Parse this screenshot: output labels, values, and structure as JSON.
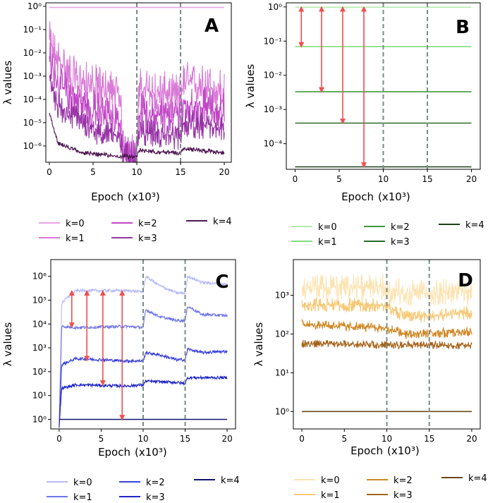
{
  "colors": {
    "A": [
      "#e8a3e4",
      "#d97ad6",
      "#c147c6",
      "#9733a6",
      "#4e1750"
    ],
    "B": [
      "#b4ecb0",
      "#7edd7a",
      "#3f9a3c",
      "#2b6a2a",
      "#1b3f1a"
    ],
    "C": [
      "#b7b9f6",
      "#7076ea",
      "#3a40dc",
      "#1f26c6",
      "#11146e"
    ],
    "D": [
      "#fde3b2",
      "#f7c874",
      "#cf8724",
      "#a5641c",
      "#6e4716"
    ],
    "arrow": "#f04e4e",
    "dashed": "#7a8b8b"
  },
  "chart_data": [
    {
      "panel": "A",
      "type": "line",
      "xlabel": "Epoch",
      "xunit": "(x10³)",
      "ylabel": "λ values",
      "xlim": [
        -0.4,
        20.8
      ],
      "ylim_log10": [
        -6.7,
        0.15
      ],
      "xticks": [
        "0",
        "5",
        "10",
        "15",
        "20"
      ],
      "yticks": [
        "10⁰",
        "10⁻¹",
        "10⁻²",
        "10⁻³",
        "10⁻⁴",
        "10⁻⁵",
        "10⁻⁶"
      ],
      "vlines": [
        10,
        15
      ],
      "series": [
        {
          "name": "k=0",
          "log10_trend": [
            [
              0,
              -0.05
            ],
            [
              20,
              -0.05
            ]
          ],
          "noise": 0
        },
        {
          "name": "k=1",
          "log10_trend": [
            [
              0,
              -1.6
            ],
            [
              1,
              -2.3
            ],
            [
              3,
              -3.2
            ],
            [
              8,
              -3.8
            ],
            [
              8.5,
              -6.4
            ],
            [
              10,
              -6.4
            ],
            [
              10.2,
              -3.6
            ],
            [
              15,
              -3.9
            ],
            [
              15.2,
              -3.3
            ],
            [
              20,
              -3.6
            ]
          ],
          "noise": 1.0
        },
        {
          "name": "k=2",
          "log10_trend": [
            [
              0,
              -2.3
            ],
            [
              1,
              -3.4
            ],
            [
              4,
              -4.3
            ],
            [
              8,
              -4.9
            ],
            [
              8.5,
              -6.4
            ],
            [
              10,
              -6.4
            ],
            [
              10.2,
              -4.6
            ],
            [
              15,
              -4.8
            ],
            [
              15.2,
              -4.2
            ],
            [
              20,
              -4.5
            ]
          ],
          "noise": 0.9
        },
        {
          "name": "k=3",
          "log10_trend": [
            [
              0,
              -3.2
            ],
            [
              1,
              -4.3
            ],
            [
              5,
              -5.3
            ],
            [
              8,
              -5.6
            ],
            [
              8.5,
              -6.4
            ],
            [
              10,
              -6.4
            ],
            [
              10.2,
              -5.4
            ],
            [
              15,
              -5.6
            ],
            [
              15.2,
              -5.0
            ],
            [
              20,
              -5.3
            ]
          ],
          "noise": 0.6
        },
        {
          "name": "k=4",
          "log10_trend": [
            [
              0,
              -4.6
            ],
            [
              1,
              -5.9
            ],
            [
              4,
              -6.3
            ],
            [
              8,
              -6.45
            ],
            [
              10,
              -6.45
            ],
            [
              10.2,
              -6.2
            ],
            [
              15,
              -6.3
            ],
            [
              15.2,
              -6.1
            ],
            [
              20,
              -6.3
            ]
          ],
          "noise": 0.1
        }
      ],
      "legend": [
        "k=0",
        "k=1",
        "k=2",
        "k=3",
        "k=4"
      ]
    },
    {
      "panel": "B",
      "type": "line",
      "xlabel": "Epoch",
      "xunit": "(x10³)",
      "ylabel": "λ values",
      "xlim": [
        -1,
        21
      ],
      "ylim_log10": [
        -4.75,
        0.12
      ],
      "xticks": [
        "0",
        "5",
        "10",
        "15",
        "20"
      ],
      "yticks": [
        "10⁰",
        "10⁻¹",
        "10⁻²",
        "10⁻³",
        "10⁻⁴"
      ],
      "vlines": [
        10,
        15
      ],
      "series": [
        {
          "name": "k=0",
          "values": 0.98
        },
        {
          "name": "k=1",
          "values": 0.069
        },
        {
          "name": "k=2",
          "values": 0.0033
        },
        {
          "name": "k=3",
          "values": 0.0004
        },
        {
          "name": "k=4",
          "values": 2.1e-05
        }
      ],
      "arrows": [
        {
          "x": 0.7,
          "from": 0.98,
          "to": 0.069
        },
        {
          "x": 3.0,
          "from": 0.98,
          "to": 0.0033
        },
        {
          "x": 5.4,
          "from": 0.98,
          "to": 0.0004
        },
        {
          "x": 7.8,
          "from": 0.98,
          "to": 2.1e-05
        }
      ],
      "legend": [
        "k=0",
        "k=1",
        "k=2",
        "k=3",
        "k=4"
      ]
    },
    {
      "panel": "C",
      "type": "line",
      "xlabel": "Epoch",
      "xunit": "(x10³)",
      "ylabel": "λ values",
      "xlim": [
        -1,
        21
      ],
      "ylim_log10": [
        -0.4,
        6.7
      ],
      "xticks": [
        "0",
        "5",
        "10",
        "15",
        "20"
      ],
      "yticks": [
        "10⁶",
        "10⁵",
        "10⁴",
        "10³",
        "10²",
        "10¹",
        "10⁰"
      ],
      "vlines": [
        10,
        15
      ],
      "series": [
        {
          "name": "k=0",
          "log10_trend": [
            [
              0,
              -0.3
            ],
            [
              0.3,
              4.9
            ],
            [
              2,
              5.4
            ],
            [
              8,
              5.4
            ],
            [
              10,
              5.35
            ],
            [
              10.3,
              6.0
            ],
            [
              12,
              5.6
            ],
            [
              14,
              5.3
            ],
            [
              15,
              5.3
            ],
            [
              15.3,
              6.0
            ],
            [
              17,
              5.75
            ],
            [
              20,
              5.65
            ]
          ],
          "noise": 0.12
        },
        {
          "name": "k=1",
          "log10_trend": [
            [
              0,
              -0.3
            ],
            [
              0.3,
              3.9
            ],
            [
              2,
              3.85
            ],
            [
              8,
              3.9
            ],
            [
              10,
              3.85
            ],
            [
              10.3,
              4.6
            ],
            [
              12,
              4.3
            ],
            [
              14,
              4.15
            ],
            [
              15,
              4.15
            ],
            [
              15.3,
              4.75
            ],
            [
              17,
              4.4
            ],
            [
              20,
              4.35
            ]
          ],
          "noise": 0.12
        },
        {
          "name": "k=2",
          "log10_trend": [
            [
              0,
              -0.3
            ],
            [
              0.3,
              2.3
            ],
            [
              2,
              2.55
            ],
            [
              8,
              2.45
            ],
            [
              10,
              2.45
            ],
            [
              10.3,
              2.8
            ],
            [
              12,
              2.7
            ],
            [
              14,
              2.5
            ],
            [
              15,
              2.5
            ],
            [
              15.3,
              2.95
            ],
            [
              17,
              2.8
            ],
            [
              20,
              2.85
            ]
          ],
          "noise": 0.12
        },
        {
          "name": "k=3",
          "log10_trend": [
            [
              0,
              -0.3
            ],
            [
              0.3,
              1.3
            ],
            [
              2,
              1.45
            ],
            [
              8,
              1.4
            ],
            [
              10,
              1.45
            ],
            [
              10.3,
              1.6
            ],
            [
              14,
              1.55
            ],
            [
              15,
              1.5
            ],
            [
              15.3,
              1.75
            ],
            [
              20,
              1.75
            ]
          ],
          "noise": 0.12
        },
        {
          "name": "k=4",
          "log10_trend": [
            [
              0,
              0
            ],
            [
              20,
              0
            ]
          ],
          "noise": 0
        }
      ],
      "arrows": [
        {
          "x": 1.5,
          "from": 240000,
          "to": 7500
        },
        {
          "x": 3.3,
          "from": 240000,
          "to": 300
        },
        {
          "x": 5.2,
          "from": 240000,
          "to": 28
        },
        {
          "x": 7.5,
          "from": 240000,
          "to": 1
        }
      ],
      "legend": [
        "k=0",
        "k=1",
        "k=2",
        "k=3",
        "k=4"
      ]
    },
    {
      "panel": "D",
      "type": "line",
      "xlabel": "Epoch",
      "xunit": "(x10³)",
      "ylabel": "λ values",
      "xlim": [
        -1,
        21
      ],
      "ylim_log10": [
        -0.45,
        3.92
      ],
      "xticks": [
        "0",
        "5",
        "10",
        "15",
        "20"
      ],
      "yticks": [
        "10³",
        "10²",
        "10¹",
        "10⁰"
      ],
      "vlines": [
        10,
        15
      ],
      "series": [
        {
          "name": "k=0",
          "log10_trend": [
            [
              0,
              3.2
            ],
            [
              10,
              3.2
            ],
            [
              12,
              3.05
            ],
            [
              20,
              3.1
            ]
          ],
          "noise": 0.35
        },
        {
          "name": "k=1",
          "log10_trend": [
            [
              0,
              2.75
            ],
            [
              10,
              2.75
            ],
            [
              12,
              2.45
            ],
            [
              20,
              2.55
            ]
          ],
          "noise": 0.18
        },
        {
          "name": "k=2",
          "log10_trend": [
            [
              0,
              2.25
            ],
            [
              10,
              2.15
            ],
            [
              12,
              2.0
            ],
            [
              20,
              2.05
            ]
          ],
          "noise": 0.13
        },
        {
          "name": "k=3",
          "log10_trend": [
            [
              0,
              1.75
            ],
            [
              20,
              1.7
            ]
          ],
          "noise": 0.1
        },
        {
          "name": "k=4",
          "log10_trend": [
            [
              0,
              0
            ],
            [
              20,
              0
            ]
          ],
          "noise": 0
        }
      ],
      "legend": [
        "k=0",
        "k=1",
        "k=2",
        "k=3",
        "k=4"
      ]
    }
  ]
}
